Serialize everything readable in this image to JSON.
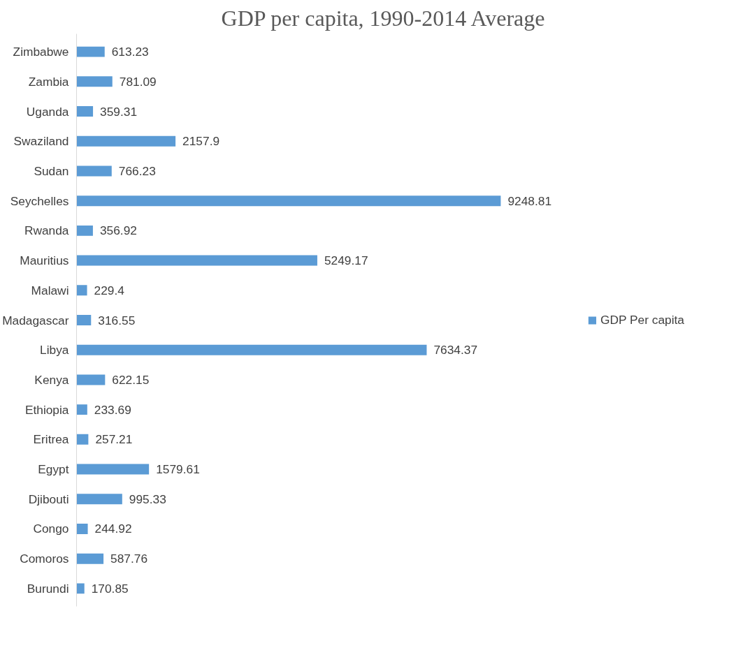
{
  "chart_data": {
    "type": "bar",
    "orientation": "horizontal",
    "title": "GDP per capita, 1990-2014 Average",
    "categories": [
      "Zimbabwe",
      "Zambia",
      "Uganda",
      "Swaziland",
      "Sudan",
      "Seychelles",
      "Rwanda",
      "Mauritius",
      "Malawi",
      "Madagascar",
      "Libya",
      "Kenya",
      "Ethiopia",
      "Eritrea",
      "Egypt",
      "Djibouti",
      "Congo",
      "Comoros",
      "Burundi"
    ],
    "series": [
      {
        "name": "GDP Per capita",
        "color": "#5b9bd5",
        "values": [
          613.23,
          781.09,
          359.31,
          2157.9,
          766.23,
          9248.81,
          356.92,
          5249.17,
          229.4,
          316.55,
          7634.37,
          622.15,
          233.69,
          257.21,
          1579.61,
          995.33,
          244.92,
          587.76,
          170.85
        ]
      }
    ],
    "data_labels": true,
    "legend": "right",
    "grid": false,
    "tick_labels": "y"
  }
}
